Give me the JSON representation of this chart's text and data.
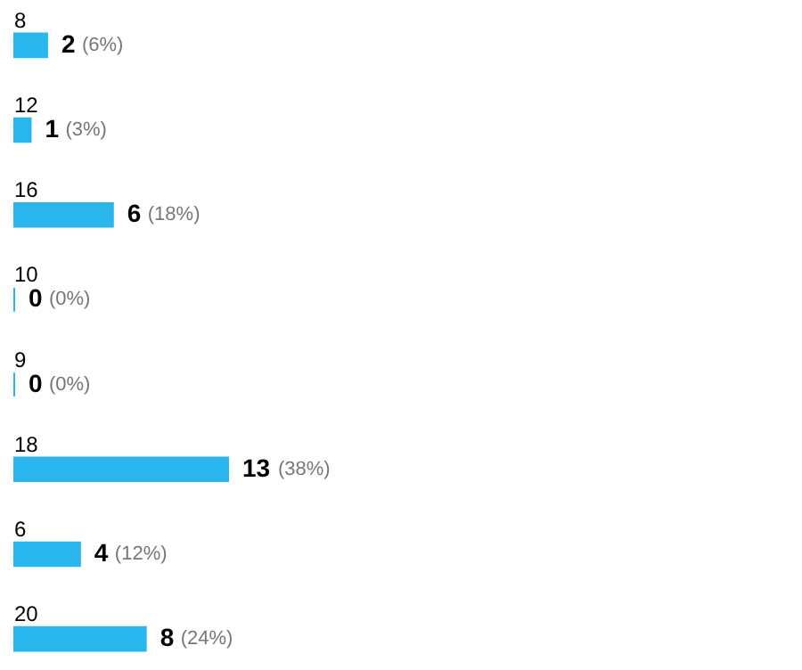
{
  "chart_data": {
    "type": "bar",
    "orientation": "horizontal",
    "categories": [
      "8",
      "12",
      "16",
      "10",
      "9",
      "18",
      "6",
      "20"
    ],
    "values": [
      2,
      1,
      6,
      0,
      0,
      13,
      4,
      8
    ],
    "data_labels": true,
    "annotations": [
      {
        "text": "(6%)",
        "x": 2,
        "y": "8"
      },
      {
        "text": "(3%)",
        "x": 1,
        "y": "12"
      },
      {
        "text": "(18%)",
        "x": 6,
        "y": "16"
      },
      {
        "text": "(0%)",
        "x": 0,
        "y": "10"
      },
      {
        "text": "(0%)",
        "x": 0,
        "y": "9"
      },
      {
        "text": "(38%)",
        "x": 13,
        "y": "18"
      },
      {
        "text": "(12%)",
        "x": 4,
        "y": "6"
      },
      {
        "text": "(24%)",
        "x": 8,
        "y": "20"
      }
    ],
    "color": "#29b6ec",
    "tick_labels": false
  }
}
